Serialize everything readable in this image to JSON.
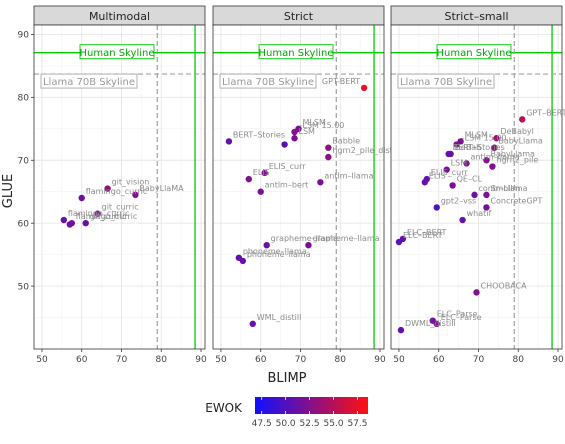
{
  "chart_data": [
    {
      "type": "scatter",
      "title": "Multimodal",
      "xlabel": "BLIMP",
      "ylabel": "GLUE",
      "xlim": [
        48,
        91
      ],
      "ylim": [
        40,
        91.5
      ],
      "x_ticks": [
        50,
        60,
        70,
        80,
        90
      ],
      "y_ticks": [
        50,
        60,
        70,
        80,
        90
      ],
      "reference_lines": [
        {
          "name": "Human Skyline",
          "orientation": "horizontal",
          "value": 87.1,
          "style": "solid",
          "color": "#00cc00"
        },
        {
          "name": "Human Skyline",
          "orientation": "vertical",
          "value": 88.5,
          "style": "solid",
          "color": "#00cc00"
        },
        {
          "name": "Llama 70B Skyline",
          "orientation": "horizontal",
          "value": 83.7,
          "style": "dashed",
          "color": "#a0a0a0"
        },
        {
          "name": "Llama 70B Skyline",
          "orientation": "vertical",
          "value": 79.0,
          "style": "dashed",
          "color": "#a0a0a0"
        }
      ],
      "points": [
        {
          "label": "git_vision",
          "x": 66.5,
          "y": 65.5,
          "ewok": 53.0
        },
        {
          "label": "BabyLlaMA",
          "x": 73.5,
          "y": 64.5,
          "ewok": 52.5
        },
        {
          "label": "flamingo_curric",
          "x": 60.0,
          "y": 64.0,
          "ewok": 51.5
        },
        {
          "label": "git_curric",
          "x": 64.0,
          "y": 61.5,
          "ewok": 52.0
        },
        {
          "label": "flamingo_curric",
          "x": 55.5,
          "y": 60.5,
          "ewok": 51.0
        },
        {
          "label": "git_curric",
          "x": 61.0,
          "y": 60.0,
          "ewok": 51.0
        },
        {
          "label": "flamingo_curric",
          "x": 57.5,
          "y": 60.0,
          "ewok": 52.0
        },
        {
          "label": "",
          "x": 57.0,
          "y": 59.8,
          "ewok": 51.5
        }
      ]
    },
    {
      "type": "scatter",
      "title": "Strict",
      "xlabel": "BLIMP",
      "ylabel": "GLUE",
      "xlim": [
        48,
        91
      ],
      "ylim": [
        40,
        91.5
      ],
      "x_ticks": [
        50,
        60,
        70,
        80,
        90
      ],
      "y_ticks": [
        50,
        60,
        70,
        80,
        90
      ],
      "reference_lines": [
        {
          "name": "Human Skyline",
          "orientation": "horizontal",
          "value": 87.1,
          "style": "solid",
          "color": "#00cc00"
        },
        {
          "name": "Human Skyline",
          "orientation": "vertical",
          "value": 88.5,
          "style": "solid",
          "color": "#00cc00"
        },
        {
          "name": "Llama 70B Skyline",
          "orientation": "horizontal",
          "value": 83.7,
          "style": "dashed",
          "color": "#a0a0a0"
        },
        {
          "name": "Llama 70B Skyline",
          "orientation": "vertical",
          "value": 79.0,
          "style": "dashed",
          "color": "#a0a0a0"
        }
      ],
      "points": [
        {
          "label": "GPT-BERT",
          "x": 86.0,
          "y": 81.5,
          "ewok": 57.5
        },
        {
          "label": "MLSM",
          "x": 69.5,
          "y": 75.0,
          "ewok": 52.0
        },
        {
          "label": "–LSM 15.00",
          "x": 68.5,
          "y": 74.5,
          "ewok": 52.5
        },
        {
          "label": "LSM",
          "x": 68.5,
          "y": 73.5,
          "ewok": 52.0
        },
        {
          "label": "BERT–Stories",
          "x": 52.0,
          "y": 73.0,
          "ewok": 51.0
        },
        {
          "label": "Babble",
          "x": 77.0,
          "y": 72.0,
          "ewok": 53.0
        },
        {
          "label": "",
          "x": 66.0,
          "y": 72.5,
          "ewok": 50.5
        },
        {
          "label": "hgrn2_pile_distill",
          "x": 77.0,
          "y": 70.5,
          "ewok": 53.0
        },
        {
          "label": "ELIS_curr",
          "x": 61.0,
          "y": 68.0,
          "ewok": 52.5
        },
        {
          "label": "ELIS",
          "x": 57.0,
          "y": 67.0,
          "ewok": 52.5
        },
        {
          "label": "antlm–llama",
          "x": 75.0,
          "y": 66.5,
          "ewok": 52.0
        },
        {
          "label": "antlm–bert",
          "x": 60.0,
          "y": 65.0,
          "ewok": 52.0
        },
        {
          "label": "grapheme–llama",
          "x": 61.5,
          "y": 56.5,
          "ewok": 51.0
        },
        {
          "label": "grapheme–llama",
          "x": 72.0,
          "y": 56.5,
          "ewok": 52.0
        },
        {
          "label": "phoneme–llama",
          "x": 54.5,
          "y": 54.5,
          "ewok": 51.0
        },
        {
          "label": "phoneme–llama",
          "x": 55.5,
          "y": 54.0,
          "ewok": 51.0
        },
        {
          "label": "WML_distill",
          "x": 58.0,
          "y": 44.0,
          "ewok": 51.0
        }
      ]
    },
    {
      "type": "scatter",
      "title": "Strict–small",
      "xlabel": "BLIMP",
      "ylabel": "GLUE",
      "xlim": [
        48,
        91
      ],
      "ylim": [
        40,
        91.5
      ],
      "x_ticks": [
        50,
        60,
        70,
        80,
        90
      ],
      "y_ticks": [
        50,
        60,
        70,
        80,
        90
      ],
      "reference_lines": [
        {
          "name": "Human Skyline",
          "orientation": "horizontal",
          "value": 87.1,
          "style": "solid",
          "color": "#00cc00"
        },
        {
          "name": "Human Skyline",
          "orientation": "vertical",
          "value": 88.5,
          "style": "solid",
          "color": "#00cc00"
        },
        {
          "name": "Llama 70B Skyline",
          "orientation": "horizontal",
          "value": 83.7,
          "style": "dashed",
          "color": "#a0a0a0"
        },
        {
          "name": "Llama 70B Skyline",
          "orientation": "vertical",
          "value": 79.0,
          "style": "dashed",
          "color": "#a0a0a0"
        }
      ],
      "points": [
        {
          "label": "GPT–BERT",
          "x": 81.0,
          "y": 76.5,
          "ewok": 55.0
        },
        {
          "label": "DeBabyl",
          "x": 74.5,
          "y": 73.5,
          "ewok": 53.5
        },
        {
          "label": "MLSM",
          "x": 65.5,
          "y": 73.0,
          "ewok": 52.0
        },
        {
          "label": "–LSM 15.00",
          "x": 64.5,
          "y": 72.5,
          "ewok": 52.5
        },
        {
          "label": "BabyLlama",
          "x": 74.0,
          "y": 72.0,
          "ewok": 53.0
        },
        {
          "label": "DeBab",
          "x": 63.0,
          "y": 71.0,
          "ewok": 52.0
        },
        {
          "label": "BERT–Stories",
          "x": 62.5,
          "y": 71.0,
          "ewok": 51.0
        },
        {
          "label": "BabyLlama",
          "x": 72.0,
          "y": 70.0,
          "ewok": 52.5
        },
        {
          "label": "antlm–llama",
          "x": 67.0,
          "y": 69.5,
          "ewok": 52.5
        },
        {
          "label": "LSM",
          "x": 62.0,
          "y": 68.5,
          "ewok": 52.0
        },
        {
          "label": "hgrn2_pile",
          "x": 73.5,
          "y": 69.0,
          "ewok": 52.5
        },
        {
          "label": "ELIS_curr",
          "x": 57.0,
          "y": 67.0,
          "ewok": 51.0
        },
        {
          "label": "ELIS",
          "x": 56.5,
          "y": 66.5,
          "ewok": 51.0
        },
        {
          "label": "QE–CL",
          "x": 63.5,
          "y": 66.0,
          "ewok": 52.0
        },
        {
          "label": "contr–Llama",
          "x": 69.0,
          "y": 64.5,
          "ewok": 51.5
        },
        {
          "label": "Smollm",
          "x": 72.0,
          "y": 64.5,
          "ewok": 52.0
        },
        {
          "label": "ConcreteGPT",
          "x": 72.0,
          "y": 62.5,
          "ewok": 52.0
        },
        {
          "label": "gpt2–vss",
          "x": 59.5,
          "y": 62.5,
          "ewok": 50.0
        },
        {
          "label": "whatif",
          "x": 66.0,
          "y": 60.5,
          "ewok": 51.0
        },
        {
          "label": "ELC–BERT",
          "x": 51.0,
          "y": 57.5,
          "ewok": 51.0
        },
        {
          "label": "ELC–BERT",
          "x": 50.0,
          "y": 57.0,
          "ewok": 50.5
        },
        {
          "label": "CHOOBACA",
          "x": 69.5,
          "y": 49.0,
          "ewok": 52.5
        },
        {
          "label": "ELC–Parse",
          "x": 58.5,
          "y": 44.5,
          "ewok": 52.0
        },
        {
          "label": "ELC–Parse",
          "x": 59.5,
          "y": 44.0,
          "ewok": 52.0
        },
        {
          "label": "DWML_distill",
          "x": 50.5,
          "y": 43.0,
          "ewok": 51.0
        }
      ]
    }
  ],
  "colorbar": {
    "title": "EWOK",
    "min": 46.8,
    "max": 58.6,
    "ticks": [
      47.5,
      50.0,
      52.5,
      55.0,
      57.5
    ],
    "tick_labels": [
      "47.5",
      "50.0",
      "52.5",
      "55.0",
      "57.5"
    ],
    "colors": [
      "#1010ff",
      "#ff1010"
    ]
  },
  "shared_labels": {
    "xlabel": "BLIMP",
    "ylabel": "GLUE",
    "human_skyline": "Human Skyline",
    "llama_skyline": "Llama 70B Skyline"
  }
}
